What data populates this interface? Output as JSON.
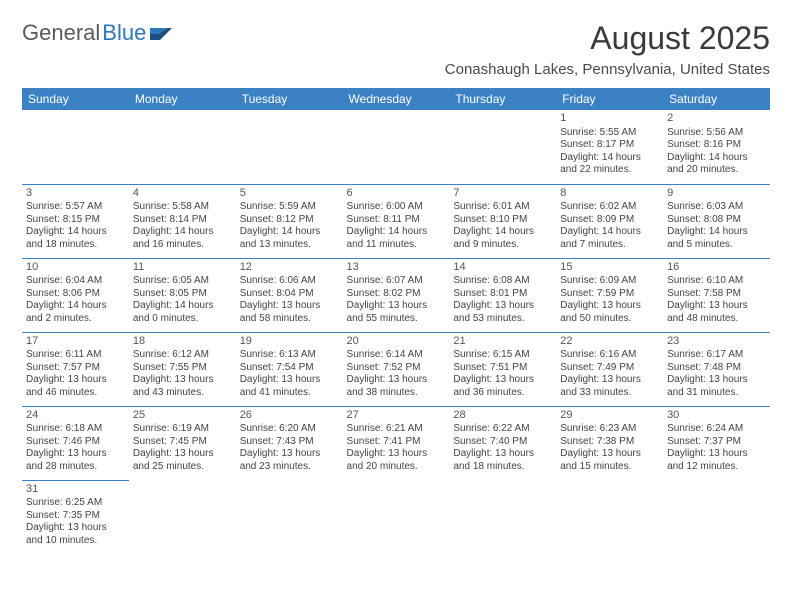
{
  "logo": {
    "part1": "General",
    "part2": "Blue"
  },
  "title": "August 2025",
  "location": "Conashaugh Lakes, Pennsylvania, United States",
  "header_color": "#3a82c4",
  "border_color": "#3a82c4",
  "weekdays": [
    "Sunday",
    "Monday",
    "Tuesday",
    "Wednesday",
    "Thursday",
    "Friday",
    "Saturday"
  ],
  "weeks": [
    [
      null,
      null,
      null,
      null,
      null,
      {
        "n": "1",
        "sr": "Sunrise: 5:55 AM",
        "ss": "Sunset: 8:17 PM",
        "d1": "Daylight: 14 hours",
        "d2": "and 22 minutes."
      },
      {
        "n": "2",
        "sr": "Sunrise: 5:56 AM",
        "ss": "Sunset: 8:16 PM",
        "d1": "Daylight: 14 hours",
        "d2": "and 20 minutes."
      }
    ],
    [
      {
        "n": "3",
        "sr": "Sunrise: 5:57 AM",
        "ss": "Sunset: 8:15 PM",
        "d1": "Daylight: 14 hours",
        "d2": "and 18 minutes."
      },
      {
        "n": "4",
        "sr": "Sunrise: 5:58 AM",
        "ss": "Sunset: 8:14 PM",
        "d1": "Daylight: 14 hours",
        "d2": "and 16 minutes."
      },
      {
        "n": "5",
        "sr": "Sunrise: 5:59 AM",
        "ss": "Sunset: 8:12 PM",
        "d1": "Daylight: 14 hours",
        "d2": "and 13 minutes."
      },
      {
        "n": "6",
        "sr": "Sunrise: 6:00 AM",
        "ss": "Sunset: 8:11 PM",
        "d1": "Daylight: 14 hours",
        "d2": "and 11 minutes."
      },
      {
        "n": "7",
        "sr": "Sunrise: 6:01 AM",
        "ss": "Sunset: 8:10 PM",
        "d1": "Daylight: 14 hours",
        "d2": "and 9 minutes."
      },
      {
        "n": "8",
        "sr": "Sunrise: 6:02 AM",
        "ss": "Sunset: 8:09 PM",
        "d1": "Daylight: 14 hours",
        "d2": "and 7 minutes."
      },
      {
        "n": "9",
        "sr": "Sunrise: 6:03 AM",
        "ss": "Sunset: 8:08 PM",
        "d1": "Daylight: 14 hours",
        "d2": "and 5 minutes."
      }
    ],
    [
      {
        "n": "10",
        "sr": "Sunrise: 6:04 AM",
        "ss": "Sunset: 8:06 PM",
        "d1": "Daylight: 14 hours",
        "d2": "and 2 minutes."
      },
      {
        "n": "11",
        "sr": "Sunrise: 6:05 AM",
        "ss": "Sunset: 8:05 PM",
        "d1": "Daylight: 14 hours",
        "d2": "and 0 minutes."
      },
      {
        "n": "12",
        "sr": "Sunrise: 6:06 AM",
        "ss": "Sunset: 8:04 PM",
        "d1": "Daylight: 13 hours",
        "d2": "and 58 minutes."
      },
      {
        "n": "13",
        "sr": "Sunrise: 6:07 AM",
        "ss": "Sunset: 8:02 PM",
        "d1": "Daylight: 13 hours",
        "d2": "and 55 minutes."
      },
      {
        "n": "14",
        "sr": "Sunrise: 6:08 AM",
        "ss": "Sunset: 8:01 PM",
        "d1": "Daylight: 13 hours",
        "d2": "and 53 minutes."
      },
      {
        "n": "15",
        "sr": "Sunrise: 6:09 AM",
        "ss": "Sunset: 7:59 PM",
        "d1": "Daylight: 13 hours",
        "d2": "and 50 minutes."
      },
      {
        "n": "16",
        "sr": "Sunrise: 6:10 AM",
        "ss": "Sunset: 7:58 PM",
        "d1": "Daylight: 13 hours",
        "d2": "and 48 minutes."
      }
    ],
    [
      {
        "n": "17",
        "sr": "Sunrise: 6:11 AM",
        "ss": "Sunset: 7:57 PM",
        "d1": "Daylight: 13 hours",
        "d2": "and 46 minutes."
      },
      {
        "n": "18",
        "sr": "Sunrise: 6:12 AM",
        "ss": "Sunset: 7:55 PM",
        "d1": "Daylight: 13 hours",
        "d2": "and 43 minutes."
      },
      {
        "n": "19",
        "sr": "Sunrise: 6:13 AM",
        "ss": "Sunset: 7:54 PM",
        "d1": "Daylight: 13 hours",
        "d2": "and 41 minutes."
      },
      {
        "n": "20",
        "sr": "Sunrise: 6:14 AM",
        "ss": "Sunset: 7:52 PM",
        "d1": "Daylight: 13 hours",
        "d2": "and 38 minutes."
      },
      {
        "n": "21",
        "sr": "Sunrise: 6:15 AM",
        "ss": "Sunset: 7:51 PM",
        "d1": "Daylight: 13 hours",
        "d2": "and 36 minutes."
      },
      {
        "n": "22",
        "sr": "Sunrise: 6:16 AM",
        "ss": "Sunset: 7:49 PM",
        "d1": "Daylight: 13 hours",
        "d2": "and 33 minutes."
      },
      {
        "n": "23",
        "sr": "Sunrise: 6:17 AM",
        "ss": "Sunset: 7:48 PM",
        "d1": "Daylight: 13 hours",
        "d2": "and 31 minutes."
      }
    ],
    [
      {
        "n": "24",
        "sr": "Sunrise: 6:18 AM",
        "ss": "Sunset: 7:46 PM",
        "d1": "Daylight: 13 hours",
        "d2": "and 28 minutes."
      },
      {
        "n": "25",
        "sr": "Sunrise: 6:19 AM",
        "ss": "Sunset: 7:45 PM",
        "d1": "Daylight: 13 hours",
        "d2": "and 25 minutes."
      },
      {
        "n": "26",
        "sr": "Sunrise: 6:20 AM",
        "ss": "Sunset: 7:43 PM",
        "d1": "Daylight: 13 hours",
        "d2": "and 23 minutes."
      },
      {
        "n": "27",
        "sr": "Sunrise: 6:21 AM",
        "ss": "Sunset: 7:41 PM",
        "d1": "Daylight: 13 hours",
        "d2": "and 20 minutes."
      },
      {
        "n": "28",
        "sr": "Sunrise: 6:22 AM",
        "ss": "Sunset: 7:40 PM",
        "d1": "Daylight: 13 hours",
        "d2": "and 18 minutes."
      },
      {
        "n": "29",
        "sr": "Sunrise: 6:23 AM",
        "ss": "Sunset: 7:38 PM",
        "d1": "Daylight: 13 hours",
        "d2": "and 15 minutes."
      },
      {
        "n": "30",
        "sr": "Sunrise: 6:24 AM",
        "ss": "Sunset: 7:37 PM",
        "d1": "Daylight: 13 hours",
        "d2": "and 12 minutes."
      }
    ],
    [
      {
        "n": "31",
        "sr": "Sunrise: 6:25 AM",
        "ss": "Sunset: 7:35 PM",
        "d1": "Daylight: 13 hours",
        "d2": "and 10 minutes."
      },
      null,
      null,
      null,
      null,
      null,
      null
    ]
  ]
}
